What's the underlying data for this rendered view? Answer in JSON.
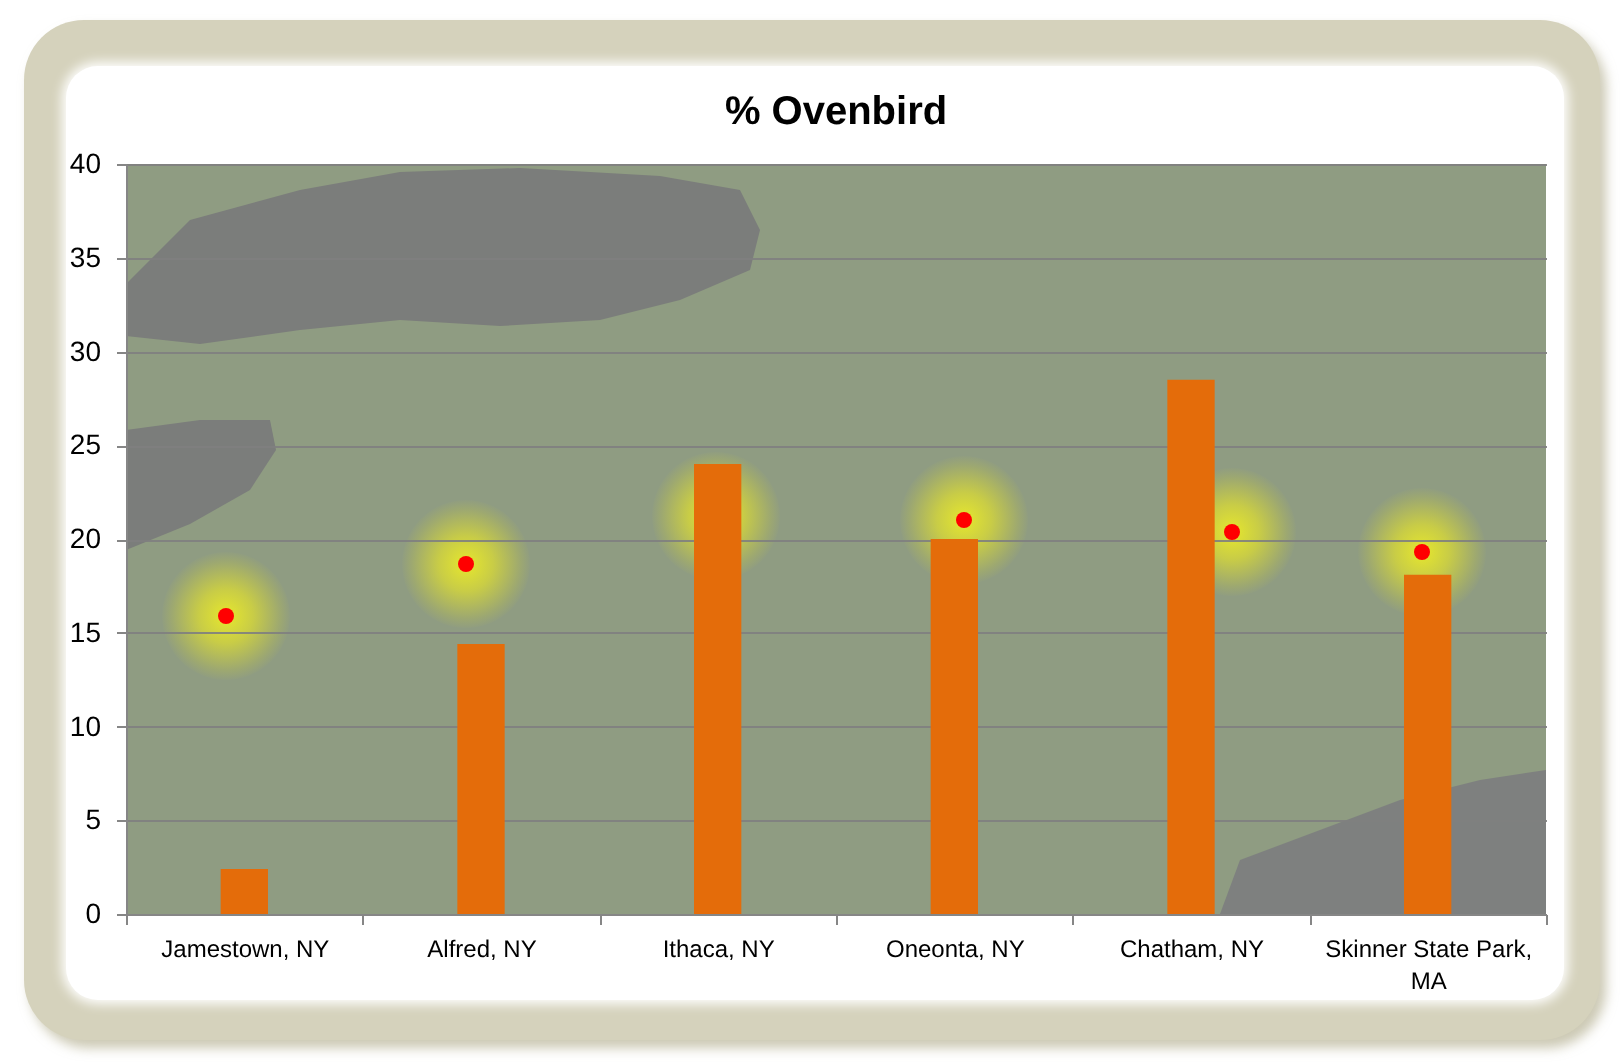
{
  "chart_data": {
    "type": "bar",
    "title": "% Ovenbird",
    "categories": [
      "Jamestown, NY",
      "Alfred, NY",
      "Ithaca, NY",
      "Oneonta, NY",
      "Chatham, NY",
      "Skinner State Park, MA"
    ],
    "values": [
      2.4,
      14.4,
      24.0,
      20.0,
      28.5,
      18.1
    ],
    "color": "#e46c0a",
    "ylim": [
      0,
      40
    ],
    "yticks": [
      0,
      5,
      10,
      15,
      20,
      25,
      30,
      35,
      40
    ],
    "grid": "y"
  }
}
